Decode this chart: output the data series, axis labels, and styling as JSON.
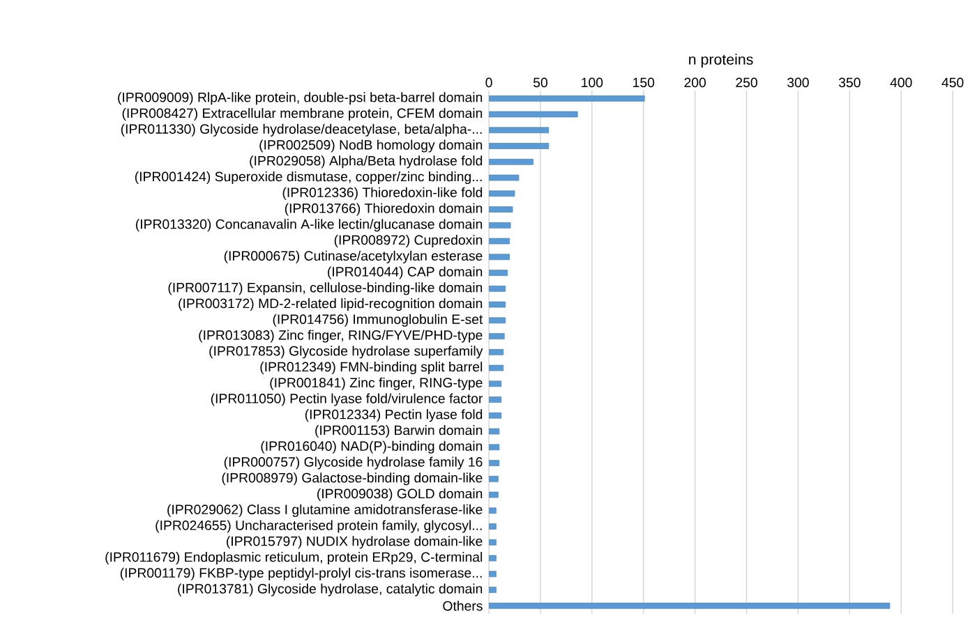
{
  "chart_data": {
    "type": "bar",
    "orientation": "horizontal",
    "xlabel": "n proteins",
    "categories": [
      "(IPR009009) RlpA-like protein, double-psi beta-barrel domain",
      "(IPR008427) Extracellular membrane protein, CFEM domain",
      "(IPR011330) Glycoside hydrolase/deacetylase, beta/alpha-...",
      "(IPR002509) NodB homology domain",
      "(IPR029058) Alpha/Beta hydrolase fold",
      "(IPR001424) Superoxide dismutase, copper/zinc binding...",
      "(IPR012336) Thioredoxin-like fold",
      "(IPR013766) Thioredoxin domain",
      "(IPR013320) Concanavalin A-like lectin/glucanase domain",
      "(IPR008972) Cupredoxin",
      "(IPR000675) Cutinase/acetylxylan esterase",
      "(IPR014044) CAP domain",
      "(IPR007117) Expansin, cellulose-binding-like domain",
      "(IPR003172) MD-2-related lipid-recognition domain",
      "(IPR014756) Immunoglobulin E-set",
      "(IPR013083) Zinc finger, RING/FYVE/PHD-type",
      "(IPR017853) Glycoside hydrolase superfamily",
      "(IPR012349) FMN-binding split barrel",
      "(IPR001841) Zinc finger, RING-type",
      "(IPR011050) Pectin lyase fold/virulence factor",
      "(IPR012334) Pectin lyase fold",
      "(IPR001153) Barwin domain",
      "(IPR016040) NAD(P)-binding domain",
      "(IPR000757) Glycoside hydrolase family 16",
      "(IPR008979) Galactose-binding domain-like",
      "(IPR009038) GOLD domain",
      "(IPR029062) Class I glutamine amidotransferase-like",
      "(IPR024655) Uncharacterised protein family, glycosyl...",
      "(IPR015797) NUDIX hydrolase domain-like",
      "(IPR011679) Endoplasmic reticulum, protein ERp29, C-terminal",
      "(IPR001179) FKBP-type peptidyl-prolyl cis-trans isomerase...",
      "(IPR013781) Glycoside hydrolase, catalytic domain",
      "Others"
    ],
    "values": [
      151,
      86,
      58,
      58,
      43,
      29,
      25,
      23,
      21,
      20,
      20,
      18,
      16,
      16,
      16,
      15,
      14,
      14,
      12,
      12,
      12,
      10,
      10,
      10,
      9,
      9,
      7,
      7,
      7,
      7,
      7,
      7,
      389
    ],
    "color": "#5b9bd5",
    "xlim": [
      0,
      450
    ],
    "xticks": [
      0,
      50,
      100,
      150,
      200,
      250,
      300,
      350,
      400,
      450
    ],
    "grid": "x"
  }
}
